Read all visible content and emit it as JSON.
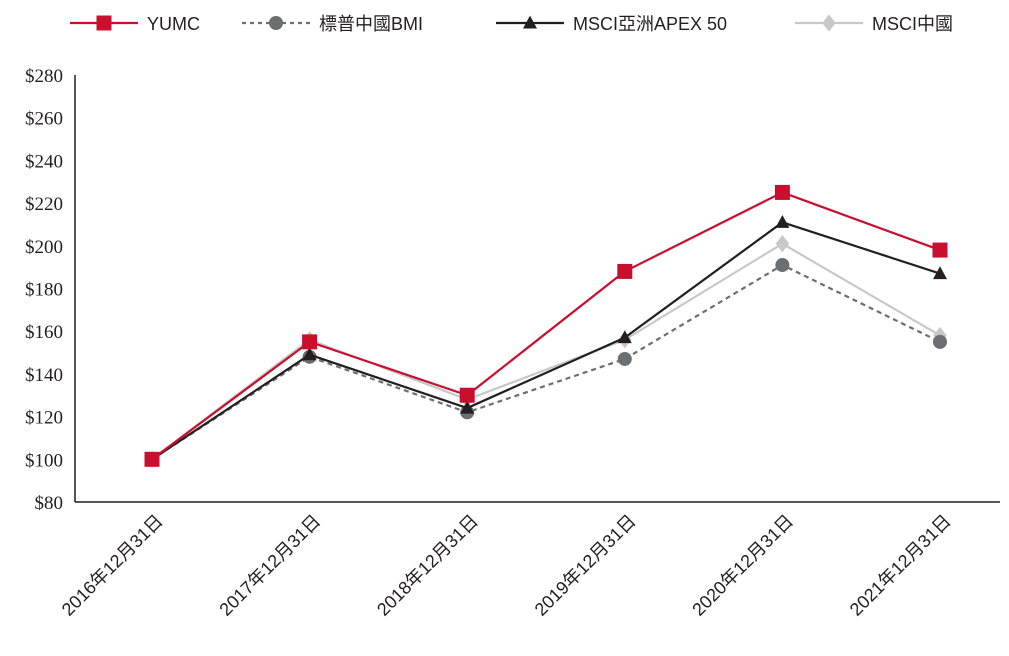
{
  "chart_data": {
    "type": "line",
    "title": "",
    "xlabel": "",
    "ylabel": "",
    "categories": [
      "2016年12月31日",
      "2017年12月31日",
      "2018年12月31日",
      "2019年12月31日",
      "2020年12月31日",
      "2021年12月31日"
    ],
    "ylim": [
      80,
      280
    ],
    "yticks": [
      80,
      100,
      120,
      140,
      160,
      180,
      200,
      220,
      240,
      260,
      280
    ],
    "ytick_prefix": "$",
    "grid": false,
    "legend_position": "top",
    "series": [
      {
        "name": "YUMC",
        "values": [
          100,
          155,
          130,
          188,
          225,
          198
        ],
        "color": "#c8102e",
        "marker": "square",
        "dash": false
      },
      {
        "name": "標普中國BMI",
        "values": [
          100,
          148,
          122,
          147,
          191,
          155
        ],
        "color": "#6d6e71",
        "marker": "circle",
        "dash": true
      },
      {
        "name": "MSCI亞洲APEX 50",
        "values": [
          100,
          149,
          124,
          157,
          211,
          187
        ],
        "color": "#231f20",
        "marker": "triangle",
        "dash": false
      },
      {
        "name": "MSCI中國",
        "values": [
          100,
          156,
          128,
          156,
          201,
          158
        ],
        "color": "#c8c8c8",
        "marker": "diamond",
        "dash": false
      }
    ]
  }
}
